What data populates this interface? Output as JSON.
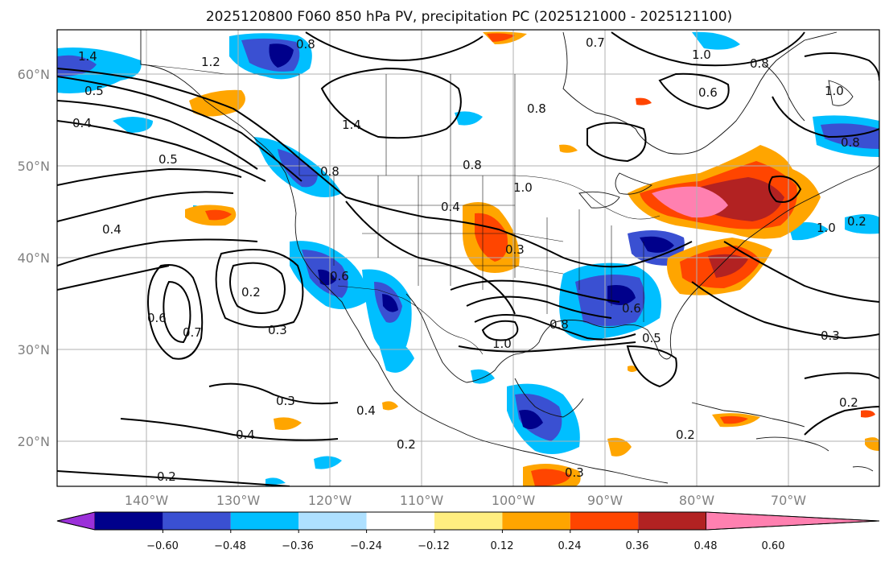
{
  "title": "2025120800 F060 850 hPa PV, precipitation PC (2025121000 - 2025121100)",
  "lat_labels": [
    "60°N",
    "50°N",
    "40°N",
    "30°N",
    "20°N"
  ],
  "lon_labels": [
    "140°W",
    "130°W",
    "120°W",
    "110°W",
    "100°W",
    "90°W",
    "80°W",
    "70°W"
  ],
  "colorbar": {
    "ticks": [
      "−0.60",
      "−0.48",
      "−0.36",
      "−0.24",
      "−0.12",
      "0.12",
      "0.24",
      "0.36",
      "0.48",
      "0.60"
    ],
    "colors": [
      "#9b30d9",
      "#00008b",
      "#3a50d2",
      "#00bfff",
      "#aee0ff",
      "#ffffff",
      "#ffee80",
      "#ffa500",
      "#ff4500",
      "#b22222",
      "#ff80b0"
    ]
  },
  "contour_labels": [
    {
      "text": "1.4"
    },
    {
      "text": "0.8"
    },
    {
      "text": "1.2"
    },
    {
      "text": "0.7"
    },
    {
      "text": "1.0"
    },
    {
      "text": "0.8"
    },
    {
      "text": "0.5"
    },
    {
      "text": "1.0"
    },
    {
      "text": "0.6"
    },
    {
      "text": "0.4"
    },
    {
      "text": "1.4"
    },
    {
      "text": "0.8"
    },
    {
      "text": "0.5"
    },
    {
      "text": "0.8"
    },
    {
      "text": "1.0"
    },
    {
      "text": "0.4"
    },
    {
      "text": "0.4"
    },
    {
      "text": "0.6"
    },
    {
      "text": "0.2"
    },
    {
      "text": "0.3"
    },
    {
      "text": "0.6"
    },
    {
      "text": "0.7"
    },
    {
      "text": "0.3"
    },
    {
      "text": "0.8"
    },
    {
      "text": "1.0"
    },
    {
      "text": "0.5"
    },
    {
      "text": "0.3"
    },
    {
      "text": "0.4"
    },
    {
      "text": "0.4"
    },
    {
      "text": "0.2"
    },
    {
      "text": "0.2"
    },
    {
      "text": "0.3"
    },
    {
      "text": "0.2"
    },
    {
      "text": "0.3"
    },
    {
      "text": "0.2"
    },
    {
      "text": "0.2"
    },
    {
      "text": "0.8"
    },
    {
      "text": "0.6"
    },
    {
      "text": "1.0"
    },
    {
      "text": "0.8"
    }
  ]
}
